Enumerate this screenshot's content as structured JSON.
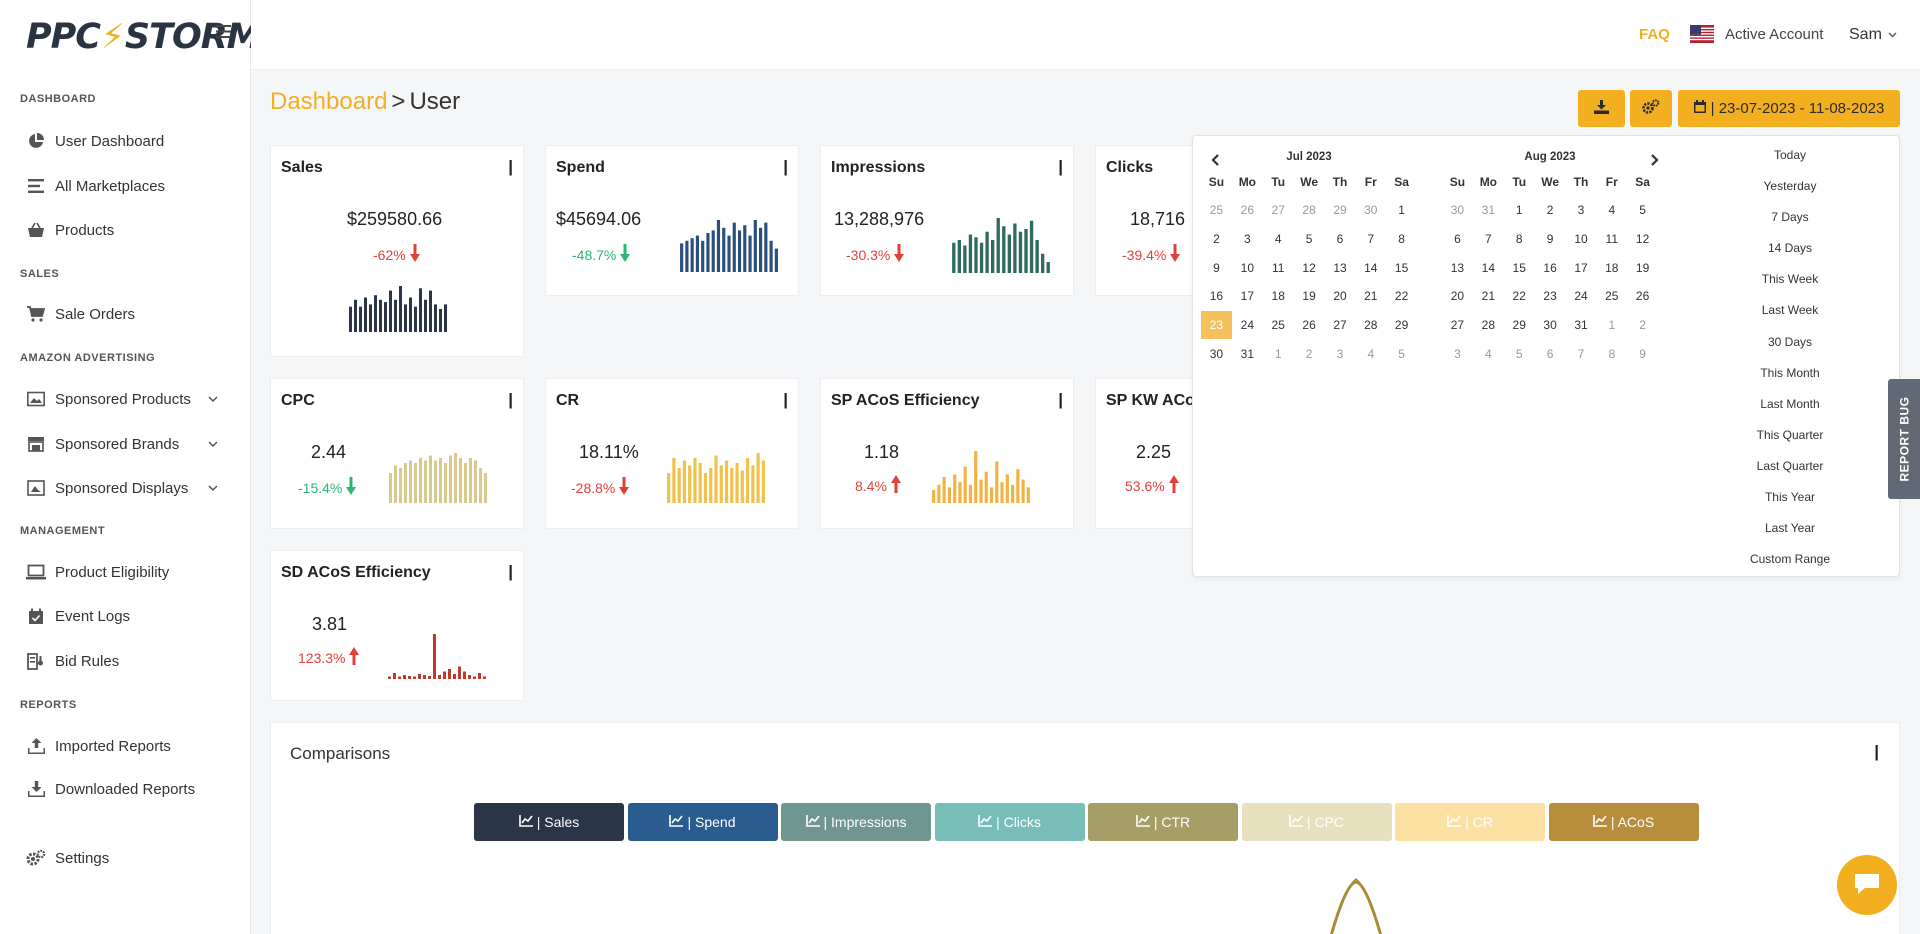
{
  "brand": {
    "left": "PPC",
    "right": "STORM"
  },
  "topbar": {
    "faq": "FAQ",
    "account": "Active Account",
    "user": "Sam"
  },
  "sidebar": {
    "sections": {
      "dashboard": "DASHBOARD",
      "sales": "SALES",
      "amazon_advertising": "AMAZON ADVERTISING",
      "management": "MANAGEMENT",
      "reports": "REPORTS"
    },
    "items": {
      "user_dashboard": "User Dashboard",
      "all_marketplaces": "All Marketplaces",
      "products": "Products",
      "sale_orders": "Sale Orders",
      "sponsored_products": "Sponsored Products",
      "sponsored_brands": "Sponsored Brands",
      "sponsored_displays": "Sponsored Displays",
      "product_eligibility": "Product Eligibility",
      "event_logs": "Event Logs",
      "bid_rules": "Bid Rules",
      "imported_reports": "Imported Reports",
      "downloaded_reports": "Downloaded Reports",
      "settings": "Settings"
    }
  },
  "breadcrumb": {
    "root": "Dashboard",
    "sep": ">",
    "current": "User"
  },
  "date_range": "| 23-07-2023 - 11-08-2023",
  "cards": {
    "sales": {
      "title": "Sales",
      "menu": "|",
      "value": "$259580.66",
      "change": "-62%"
    },
    "spend": {
      "title": "Spend",
      "menu": "|",
      "value": "$45694.06",
      "change": "-48.7%"
    },
    "impressions": {
      "title": "Impressions",
      "menu": "|",
      "value": "13,288,976",
      "change": "-30.3%"
    },
    "clicks": {
      "title": "Clicks",
      "menu": "|",
      "value": "18,716",
      "change": "-39.4%"
    },
    "cpc": {
      "title": "CPC",
      "menu": "|",
      "value": "2.44",
      "change": "-15.4%"
    },
    "cr": {
      "title": "CR",
      "menu": "|",
      "value": "18.11%",
      "change": "-28.8%"
    },
    "sp_acos": {
      "title": "SP ACoS Efficiency",
      "menu": "|",
      "value": "1.18",
      "change": "8.4%"
    },
    "sp_kw_acos": {
      "title": "SP KW ACoS",
      "menu": "|",
      "value": "2.25",
      "change": "53.6%"
    },
    "sd_acos": {
      "title": "SD ACoS Efficiency",
      "menu": "|",
      "value": "3.81",
      "change": "123.3%"
    }
  },
  "sparks": {
    "sales": [
      0.55,
      0.7,
      0.55,
      0.75,
      0.6,
      0.8,
      0.7,
      0.65,
      0.9,
      0.7,
      1.0,
      0.6,
      0.75,
      0.55,
      0.95,
      0.7,
      0.9,
      0.6,
      0.5,
      0.6
    ],
    "spend": [
      0.55,
      0.6,
      0.65,
      0.7,
      0.6,
      0.75,
      0.8,
      1.0,
      0.85,
      0.7,
      0.95,
      0.8,
      0.9,
      0.7,
      1.0,
      0.85,
      0.95,
      0.6,
      0.45
    ],
    "impressions": [
      0.55,
      0.6,
      0.5,
      0.7,
      0.65,
      0.55,
      0.75,
      0.6,
      1.0,
      0.85,
      0.7,
      0.9,
      0.75,
      0.8,
      0.95,
      0.6,
      0.35,
      0.2
    ],
    "cpc": [
      0.6,
      0.75,
      0.7,
      0.8,
      0.85,
      0.8,
      0.9,
      0.85,
      0.95,
      0.85,
      0.9,
      0.8,
      0.95,
      1.0,
      0.9,
      0.8,
      0.9,
      0.85,
      0.7,
      0.6
    ],
    "cr": [
      0.6,
      0.9,
      0.7,
      0.85,
      0.75,
      0.9,
      0.8,
      0.6,
      0.7,
      0.95,
      0.75,
      0.85,
      0.7,
      0.8,
      0.65,
      0.9,
      0.75,
      1.0,
      0.85
    ],
    "sp_acos": [
      0.25,
      0.35,
      0.5,
      0.3,
      0.55,
      0.4,
      0.7,
      0.35,
      1.0,
      0.45,
      0.6,
      0.3,
      0.8,
      0.4,
      0.55,
      0.35,
      0.65,
      0.45,
      0.3
    ],
    "sd_acos": [
      0.05,
      0.12,
      0.05,
      0.08,
      0.06,
      0.05,
      0.1,
      0.08,
      0.06,
      0.9,
      0.08,
      0.15,
      0.2,
      0.1,
      0.25,
      0.15,
      0.08,
      0.05,
      0.12,
      0.05
    ]
  },
  "spark_colors": {
    "sales": "#2b3548",
    "spend": "#2a4f7c",
    "impressions": "#2f6b5e",
    "cpc": "#d8c98f",
    "cr": "#f2c14a",
    "sp_acos": "#f2b340",
    "sd_acos": "#c0392b"
  },
  "datepicker": {
    "left_month": "Jul 2023",
    "right_month": "Aug 2023",
    "weekdays": [
      "Su",
      "Mo",
      "Tu",
      "We",
      "Th",
      "Fr",
      "Sa"
    ],
    "left_weeks": [
      [
        "25",
        "26",
        "27",
        "28",
        "29",
        "30",
        "1"
      ],
      [
        "2",
        "3",
        "4",
        "5",
        "6",
        "7",
        "8"
      ],
      [
        "9",
        "10",
        "11",
        "12",
        "13",
        "14",
        "15"
      ],
      [
        "16",
        "17",
        "18",
        "19",
        "20",
        "21",
        "22"
      ],
      [
        "23",
        "24",
        "25",
        "26",
        "27",
        "28",
        "29"
      ],
      [
        "30",
        "31",
        "1",
        "2",
        "3",
        "4",
        "5"
      ]
    ],
    "right_weeks": [
      [
        "30",
        "31",
        "1",
        "2",
        "3",
        "4",
        "5"
      ],
      [
        "6",
        "7",
        "8",
        "9",
        "10",
        "11",
        "12"
      ],
      [
        "13",
        "14",
        "15",
        "16",
        "17",
        "18",
        "19"
      ],
      [
        "20",
        "21",
        "22",
        "23",
        "24",
        "25",
        "26"
      ],
      [
        "27",
        "28",
        "29",
        "30",
        "31",
        "1",
        "2"
      ],
      [
        "3",
        "4",
        "5",
        "6",
        "7",
        "8",
        "9"
      ]
    ],
    "ranges": [
      "Today",
      "Yesterday",
      "7 Days",
      "14 Days",
      "This Week",
      "Last Week",
      "30 Days",
      "This Month",
      "Last Month",
      "This Quarter",
      "Last Quarter",
      "This Year",
      "Last Year",
      "Custom Range"
    ]
  },
  "report_bug": "REPORT BUG",
  "comparisons": {
    "title": "Comparisons",
    "menu": "|",
    "buttons": [
      {
        "label": "| Sales",
        "color": "#2b3548"
      },
      {
        "label": "| Spend",
        "color": "#2a5c8f"
      },
      {
        "label": "| Impressions",
        "color": "#6f9690"
      },
      {
        "label": "| Clicks",
        "color": "#78bdb7"
      },
      {
        "label": "| CTR",
        "color": "#a59e66"
      },
      {
        "label": "| CPC",
        "color": "#e7e1bf"
      },
      {
        "label": "| CR",
        "color": "#fde1a4"
      },
      {
        "label": "| ACoS",
        "color": "#b88e3d"
      }
    ]
  }
}
